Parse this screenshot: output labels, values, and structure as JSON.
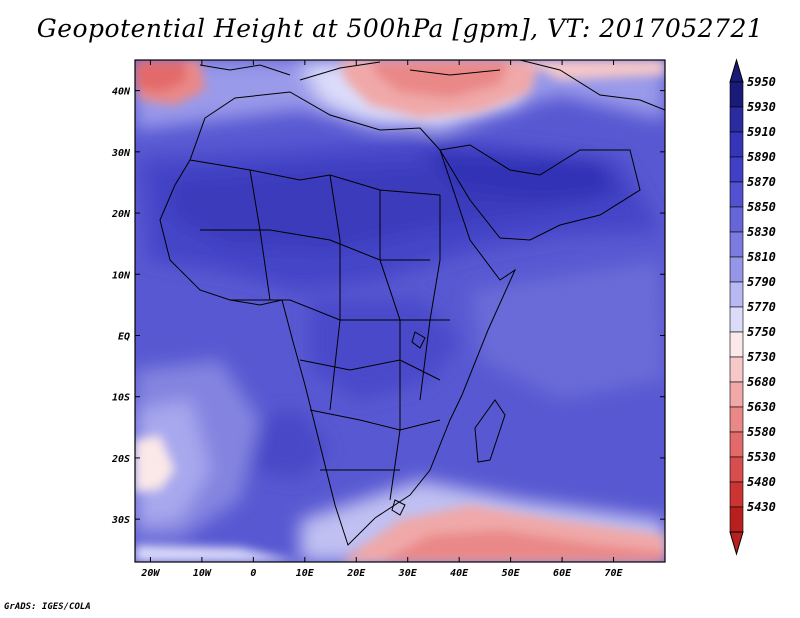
{
  "title": "Geopotential Height at 500hPa [gpm], VT: 2017052721",
  "credit": "GrADS: IGES/COLA",
  "map": {
    "lat_labels": [
      "40N",
      "30N",
      "20N",
      "10N",
      "EQ",
      "10S",
      "20S",
      "30S"
    ],
    "lat_values": [
      40,
      30,
      20,
      10,
      0,
      -10,
      -20,
      -30
    ],
    "lon_labels": [
      "20W",
      "10W",
      "0",
      "10E",
      "20E",
      "30E",
      "40E",
      "50E",
      "60E",
      "70E"
    ],
    "lon_values": [
      -20,
      -10,
      0,
      10,
      20,
      30,
      40,
      50,
      60,
      70
    ],
    "extent": {
      "lon_min": -23,
      "lon_max": 80,
      "lat_min": -37,
      "lat_max": 45
    }
  },
  "colorbar": {
    "labels": [
      "5950",
      "5930",
      "5910",
      "5890",
      "5870",
      "5850",
      "5830",
      "5810",
      "5790",
      "5770",
      "5750",
      "5730",
      "5680",
      "5630",
      "5580",
      "5530",
      "5480",
      "5430"
    ],
    "colors": [
      "#1a1a78",
      "#2b2ba0",
      "#3535b8",
      "#4040c6",
      "#5252d0",
      "#6666d8",
      "#7c7ce0",
      "#9696e8",
      "#b8b8f2",
      "#dcdcfa",
      "#fbe8e8",
      "#f6c8c8",
      "#f0a8a8",
      "#ea8888",
      "#e26a6a",
      "#d84e4e",
      "#cc3434",
      "#b82020"
    ],
    "top_arrow_color": "#1a1a78",
    "bottom_arrow_color": "#b82020"
  }
}
